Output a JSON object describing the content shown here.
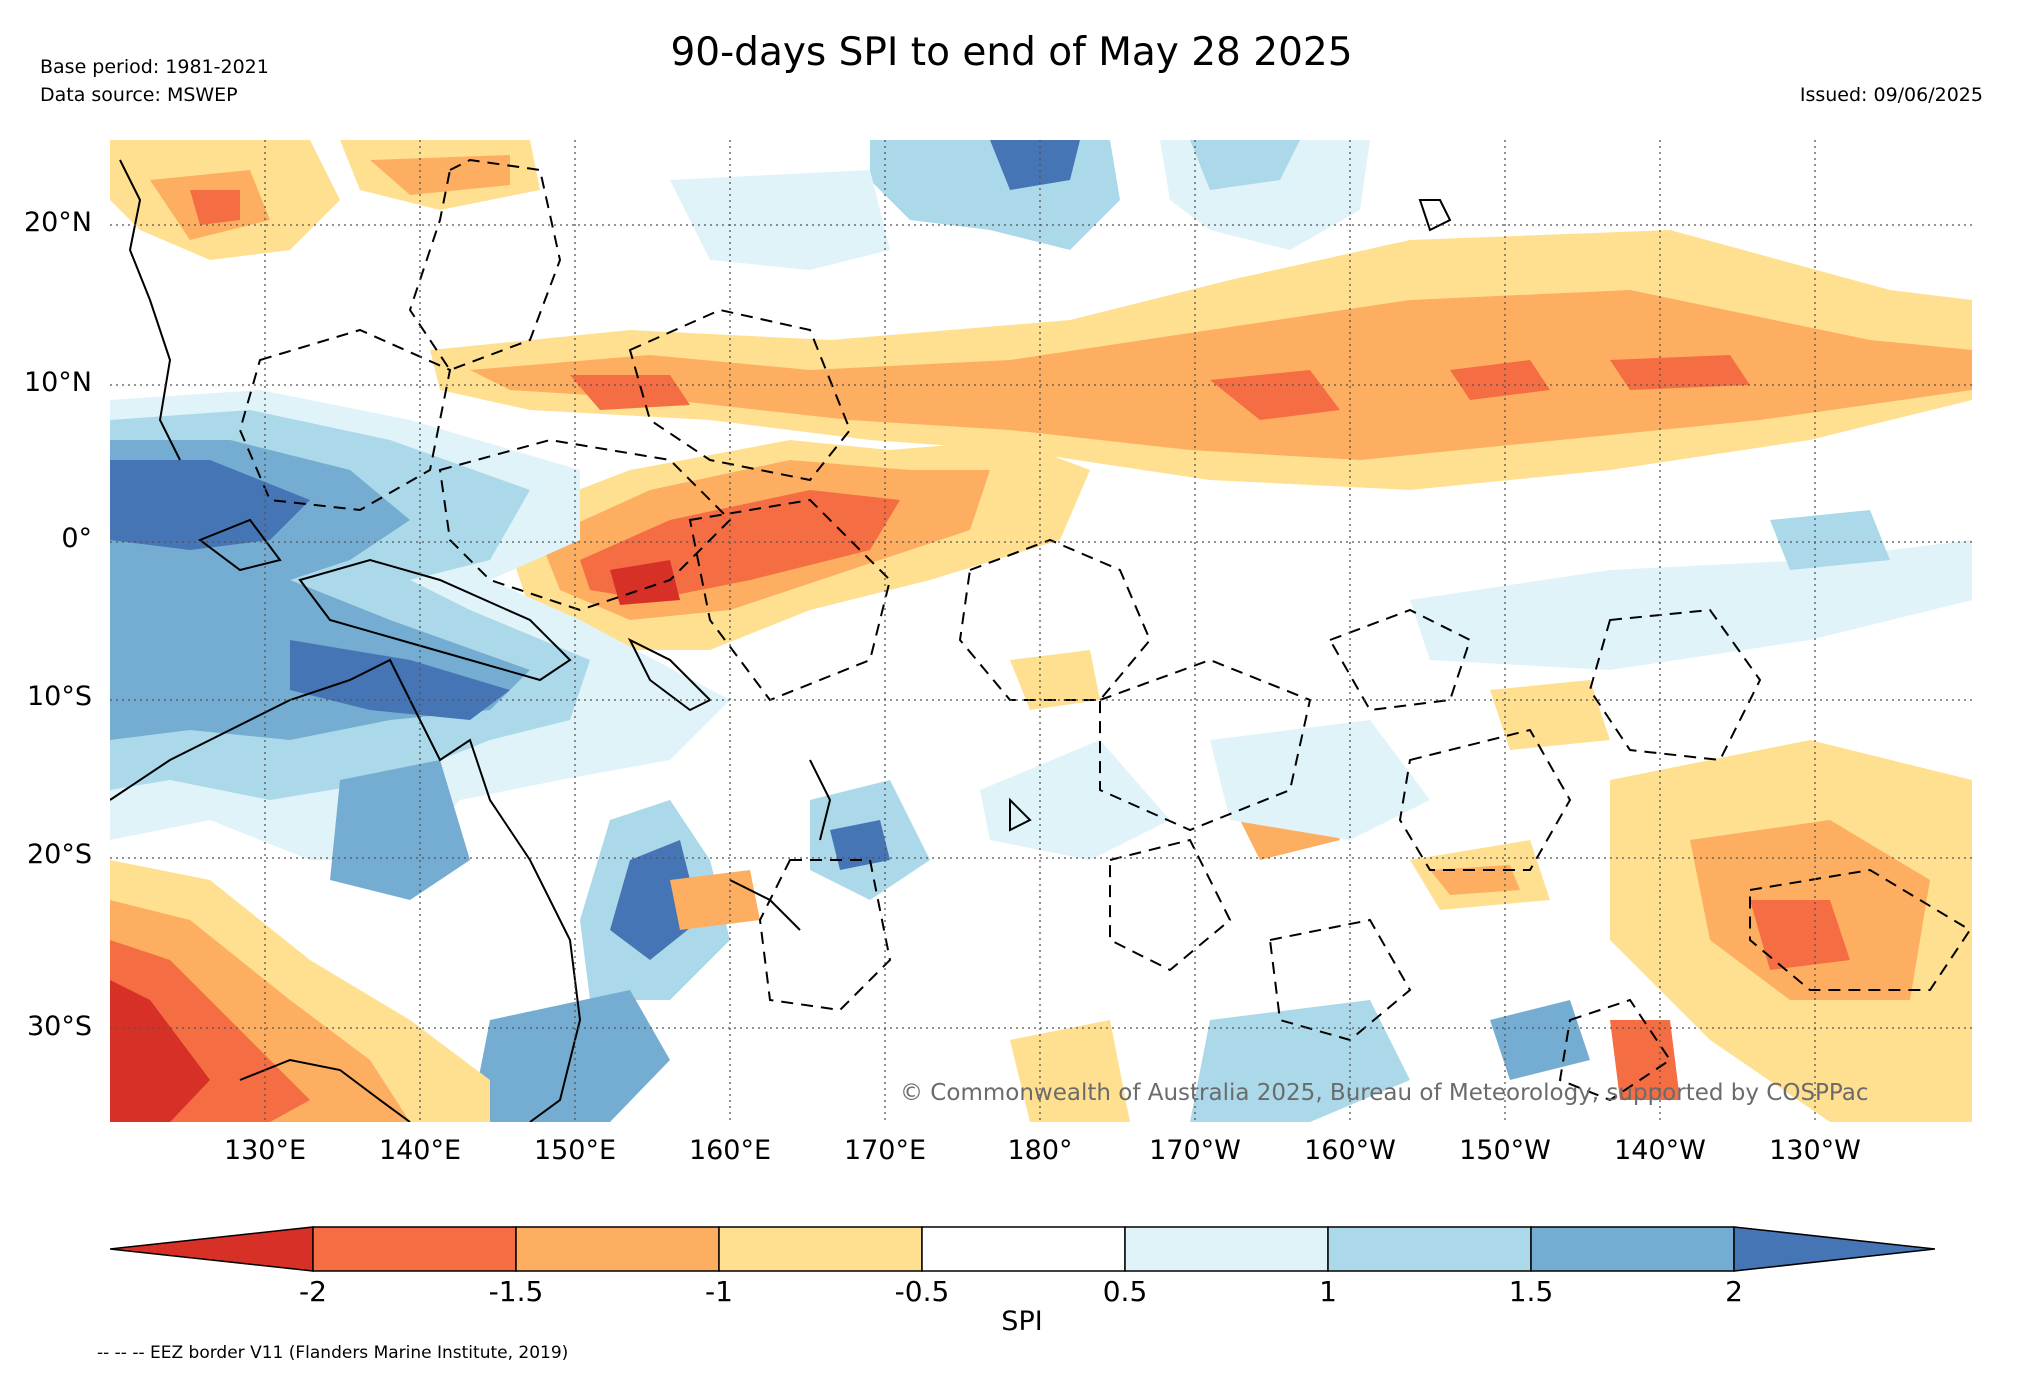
{
  "header": {
    "title": "90-days SPI to end of May 28 2025",
    "base_period": "Base period: 1981-2021",
    "data_source": "Data source: MSWEP",
    "issued": "Issued: 09/06/2025"
  },
  "map": {
    "lat_labels": [
      "20°N",
      "10°N",
      "0°",
      "10°S",
      "20°S",
      "30°S"
    ],
    "lon_labels": [
      "130°E",
      "140°E",
      "150°E",
      "160°E",
      "170°E",
      "180°",
      "170°W",
      "160°W",
      "150°W",
      "140°W",
      "130°W"
    ],
    "copyright": "© Commonwealth of Australia 2025, Bureau of Meteorology, supported by COSPPac",
    "extent": {
      "lon_min": 120,
      "lon_max": 240,
      "lat_min": -36,
      "lat_max": 25
    }
  },
  "colorbar": {
    "label": "SPI",
    "ticks": [
      "-2",
      "-1.5",
      "-1",
      "-0.5",
      "0.5",
      "1",
      "1.5",
      "2"
    ],
    "colors": [
      "#d73027",
      "#f46d43",
      "#fdae61",
      "#fee090",
      "#ffffff",
      "#e0f3f8",
      "#abd9e9",
      "#74add1",
      "#4575b4"
    ]
  },
  "footer": {
    "eez_note": "-- -- -- EEZ border V11 (Flanders Marine Institute, 2019)"
  }
}
